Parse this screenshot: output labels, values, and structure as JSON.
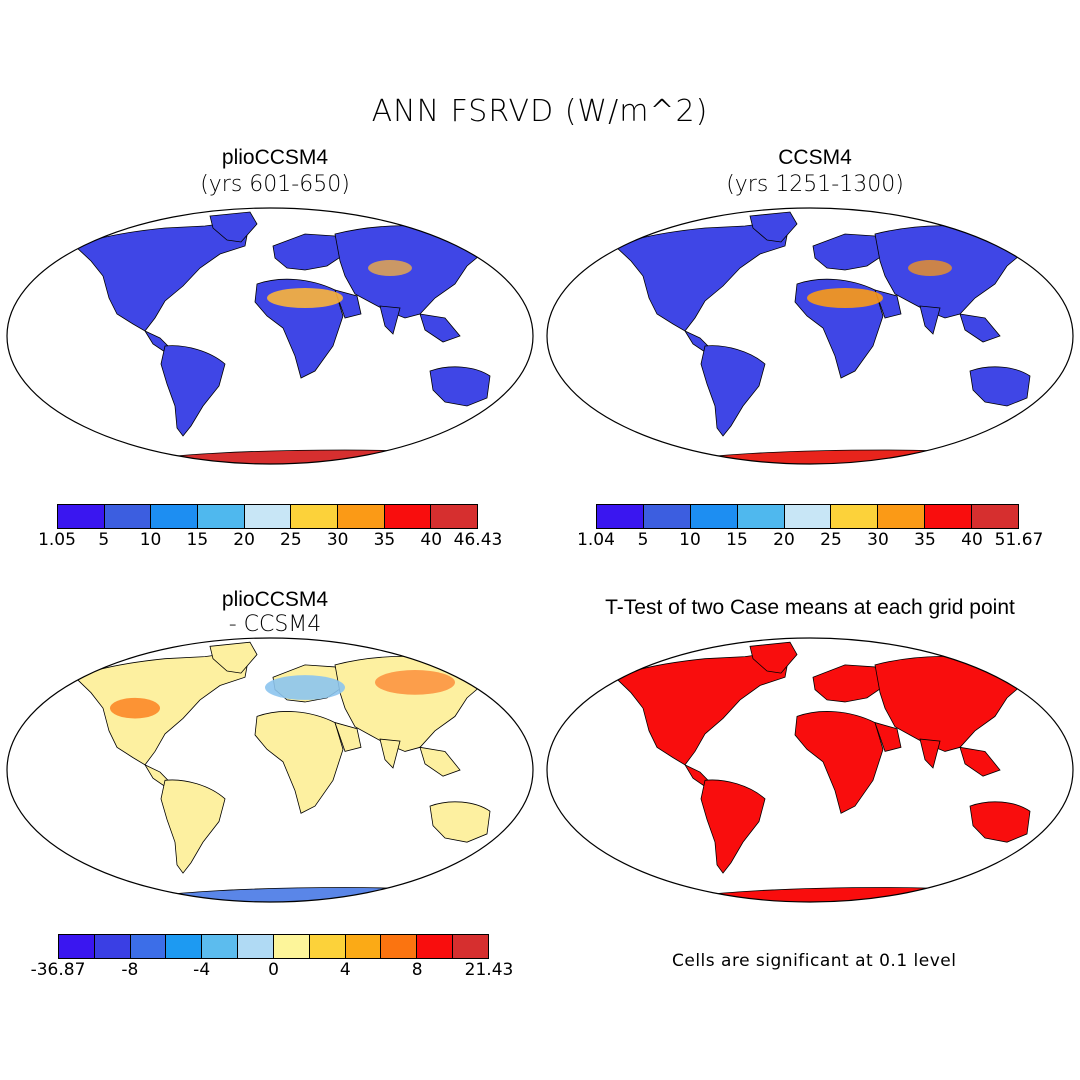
{
  "title": "ANN FSRVD (W/m^2)",
  "panels": [
    {
      "title": "plioCCSM4",
      "subtitle": "(yrs 601-650)"
    },
    {
      "title": "CCSM4",
      "subtitle": "(yrs 1251-1300)"
    },
    {
      "title": "plioCCSM4",
      "subtitle": "- CCSM4"
    },
    {
      "title": "T-Test of two Case means at each grid point",
      "subtitle": ""
    }
  ],
  "colorbars": {
    "cb1": {
      "colors": [
        "#3a16f0",
        "#3c5ee0",
        "#1d8ef2",
        "#4fb8ee",
        "#c8e6f6",
        "#fcd23a",
        "#fb9a16",
        "#f90d0d",
        "#d62f2f"
      ],
      "labels": [
        "1.05",
        "5",
        "10",
        "15",
        "20",
        "25",
        "30",
        "35",
        "40",
        "46.43"
      ]
    },
    "cb2": {
      "colors": [
        "#3a16f0",
        "#3c5ee0",
        "#1d8ef2",
        "#4fb8ee",
        "#c8e6f6",
        "#fcd23a",
        "#fb9a16",
        "#f90d0d",
        "#d62f2f"
      ],
      "labels": [
        "1.04",
        "5",
        "10",
        "15",
        "20",
        "25",
        "30",
        "35",
        "40",
        "51.67"
      ]
    },
    "cb3": {
      "colors": [
        "#3a16f0",
        "#3a3fe4",
        "#3c6ee8",
        "#1d9af2",
        "#5cbcee",
        "#b0daf4",
        "#fdf59a",
        "#fcd23a",
        "#fbaa16",
        "#fb7410",
        "#f90d0d",
        "#d62f2f"
      ],
      "labels": [
        "-36.87",
        "-8",
        "-4",
        "0",
        "4",
        "8",
        "21.43"
      ]
    }
  },
  "note": "Cells are significant at 0.1 level",
  "map_colors": {
    "panel1": {
      "land": "#3f46e6",
      "antarctica": "#d62f2f",
      "desert": "#fbb43a"
    },
    "panel2": {
      "land": "#3f46e6",
      "antarctica": "#e8241c",
      "desert": "#fb9a16"
    },
    "panel3": {
      "land": "#fdf0a0",
      "antarctica": "#5a86e8",
      "anomaly": "#8cc4ee"
    },
    "panel4": {
      "land": "#f90d0d",
      "antarctica": "#f90d0d"
    }
  }
}
